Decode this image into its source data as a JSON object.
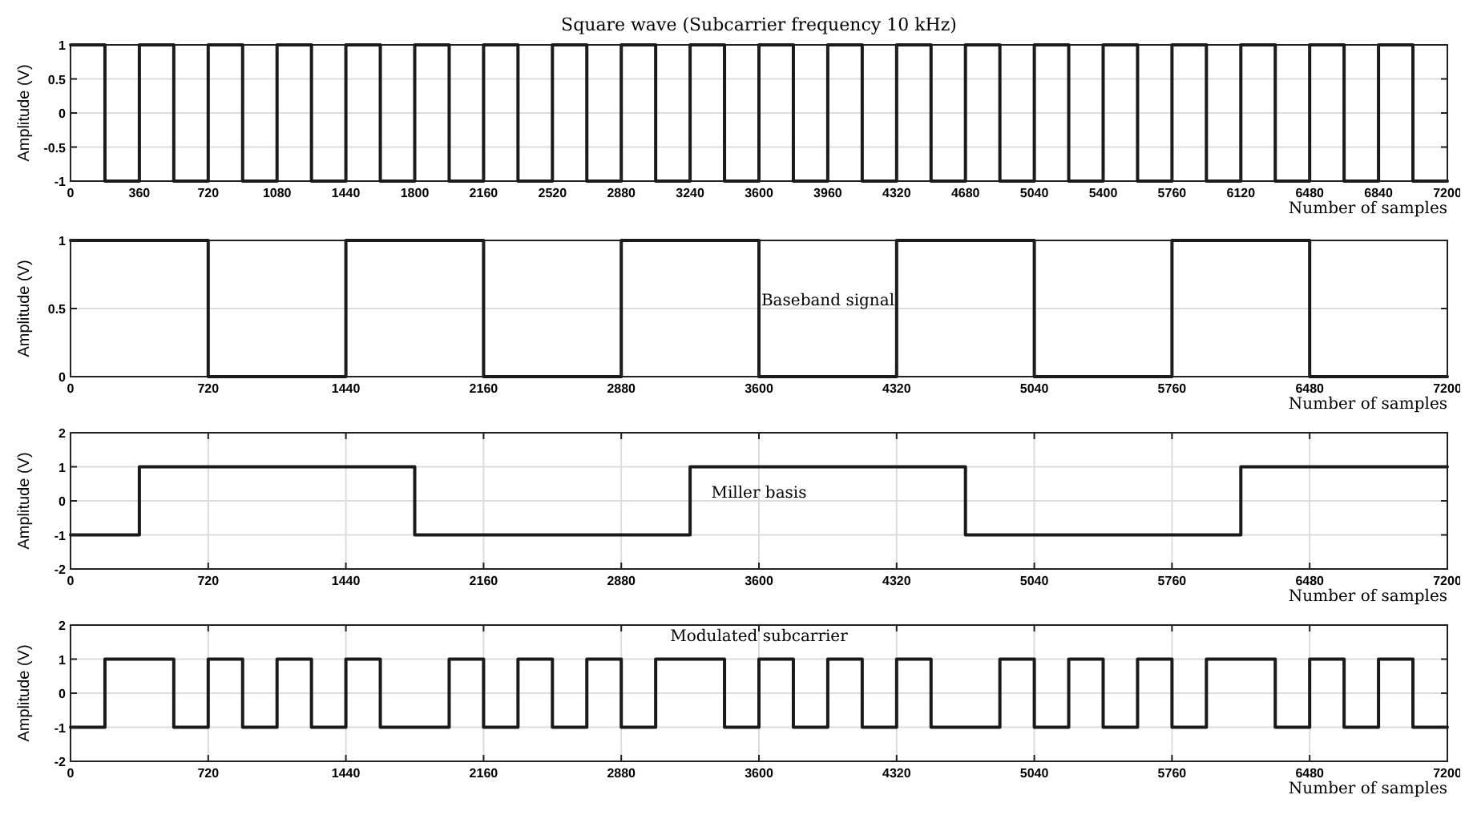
{
  "chart_data": [
    {
      "type": "step",
      "title": "Square wave (Subcarrier frequency 10 kHz)",
      "xlabel": "Number of samples",
      "ylabel": "Amplitude (V)",
      "x": [
        0,
        180,
        360,
        540,
        720,
        900,
        1080,
        1260,
        1440,
        1620,
        1800,
        1980,
        2160,
        2340,
        2520,
        2700,
        2880,
        3060,
        3240,
        3420,
        3600,
        3780,
        3960,
        4140,
        4320,
        4500,
        4680,
        4860,
        5040,
        5220,
        5400,
        5580,
        5760,
        5940,
        6120,
        6300,
        6480,
        6660,
        6840,
        7020,
        7200
      ],
      "series": [
        {
          "color": "#1a1a1a",
          "values": [
            1,
            -1,
            1,
            -1,
            1,
            -1,
            1,
            -1,
            1,
            -1,
            1,
            -1,
            1,
            -1,
            1,
            -1,
            1,
            -1,
            1,
            -1,
            1,
            -1,
            1,
            -1,
            1,
            -1,
            1,
            -1,
            1,
            -1,
            1,
            -1,
            1,
            -1,
            1,
            -1,
            1,
            -1,
            1,
            -1,
            -1
          ]
        }
      ],
      "xlim": [
        0,
        7200
      ],
      "xticks": [
        0,
        360,
        720,
        1080,
        1440,
        1800,
        2160,
        2520,
        2880,
        3240,
        3600,
        3960,
        4320,
        4680,
        5040,
        5400,
        5760,
        6120,
        6480,
        6840,
        7200
      ],
      "ylim": [
        -1,
        1
      ],
      "yticks": [
        -1,
        -0.5,
        0,
        0.5,
        1
      ],
      "grid": true
    },
    {
      "type": "step",
      "annotations": [
        "Baseband signal"
      ],
      "xlabel": "Number of samples",
      "ylabel": "Amplitude (V)",
      "x": [
        0,
        720,
        1440,
        2160,
        2880,
        3600,
        4320,
        5040,
        5760,
        6480,
        7200
      ],
      "series": [
        {
          "color": "#1a1a1a",
          "values": [
            1,
            0,
            1,
            0,
            1,
            0,
            1,
            0,
            1,
            0,
            0
          ]
        }
      ],
      "xlim": [
        0,
        7200
      ],
      "xticks": [
        0,
        720,
        1440,
        2160,
        2880,
        3600,
        4320,
        5040,
        5760,
        6480,
        7200
      ],
      "ylim": [
        0,
        1
      ],
      "yticks": [
        0,
        0.5,
        1
      ],
      "grid": true
    },
    {
      "type": "step",
      "annotations": [
        "Miller basis"
      ],
      "xlabel": "Number of samples",
      "ylabel": "Amplitude (V)",
      "x": [
        0,
        360,
        1800,
        3240,
        4680,
        6120,
        7200
      ],
      "series": [
        {
          "color": "#1a1a1a",
          "values": [
            -1,
            1,
            -1,
            1,
            -1,
            1,
            1
          ]
        }
      ],
      "xlim": [
        0,
        7200
      ],
      "xticks": [
        0,
        720,
        1440,
        2160,
        2880,
        3600,
        4320,
        5040,
        5760,
        6480,
        7200
      ],
      "ylim": [
        -2,
        2
      ],
      "yticks": [
        -2,
        -1,
        0,
        1,
        2
      ],
      "grid": true
    },
    {
      "type": "step",
      "annotations": [
        "Modulated subcarrier"
      ],
      "xlabel": "Number of samples",
      "ylabel": "Amplitude (V)",
      "x": [
        0,
        180,
        540,
        720,
        900,
        1080,
        1260,
        1440,
        1620,
        1980,
        2160,
        2340,
        2520,
        2700,
        2880,
        3060,
        3420,
        3600,
        3780,
        3960,
        4140,
        4320,
        4500,
        4860,
        5040,
        5220,
        5400,
        5580,
        5760,
        5940,
        6300,
        6480,
        6660,
        6840,
        7020,
        7200
      ],
      "series": [
        {
          "color": "#1a1a1a",
          "values": [
            -1,
            1,
            -1,
            1,
            -1,
            1,
            -1,
            1,
            -1,
            1,
            -1,
            1,
            -1,
            1,
            -1,
            1,
            -1,
            1,
            -1,
            1,
            -1,
            1,
            -1,
            1,
            -1,
            1,
            -1,
            1,
            -1,
            1,
            -1,
            1,
            -1,
            1,
            -1,
            -1
          ]
        }
      ],
      "xlim": [
        0,
        7200
      ],
      "xticks": [
        0,
        720,
        1440,
        2160,
        2880,
        3600,
        4320,
        5040,
        5760,
        6480,
        7200
      ],
      "ylim": [
        -2,
        2
      ],
      "yticks": [
        -2,
        -1,
        0,
        1,
        2
      ],
      "grid": true
    }
  ]
}
